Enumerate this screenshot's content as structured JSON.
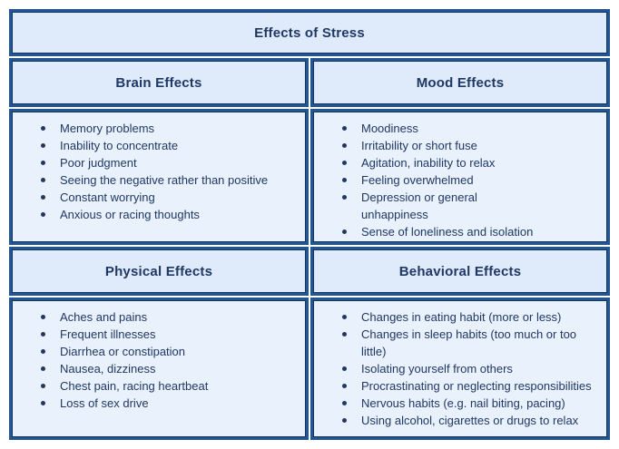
{
  "title": "Effects of Stress",
  "sections": [
    {
      "heading": "Brain Effects",
      "items": [
        "Memory problems",
        "Inability to concentrate",
        "Poor judgment",
        "Seeing the negative rather than positive",
        "Constant worrying",
        "Anxious or racing thoughts"
      ]
    },
    {
      "heading": "Mood Effects",
      "items": [
        "Moodiness",
        "Irritability or short fuse",
        "Agitation, inability to relax",
        "Feeling overwhelmed",
        "Depression or general\nunhappiness",
        "Sense of loneliness and isolation"
      ]
    },
    {
      "heading": "Physical Effects",
      "items": [
        "Aches and pains",
        "Frequent illnesses",
        "Diarrhea or constipation",
        "Nausea, dizziness",
        "Chest pain, racing heartbeat",
        "Loss of sex drive"
      ]
    },
    {
      "heading": "Behavioral Effects",
      "items": [
        "Changes in eating habit (more or less)",
        "Changes in sleep habits (too much or too\nlittle)",
        "Isolating yourself from others",
        "Procrastinating or neglecting responsibilities",
        "Nervous habits (e.g. nail biting, pacing)",
        "Using alcohol, cigarettes or drugs to relax"
      ]
    }
  ],
  "colors": {
    "page_bg": "#ffffff",
    "body_bg": "#e9f1fc",
    "header_bg": "#dfeafa",
    "border": "#235591",
    "border_inner": "#16365e",
    "text": "#1f3864"
  }
}
